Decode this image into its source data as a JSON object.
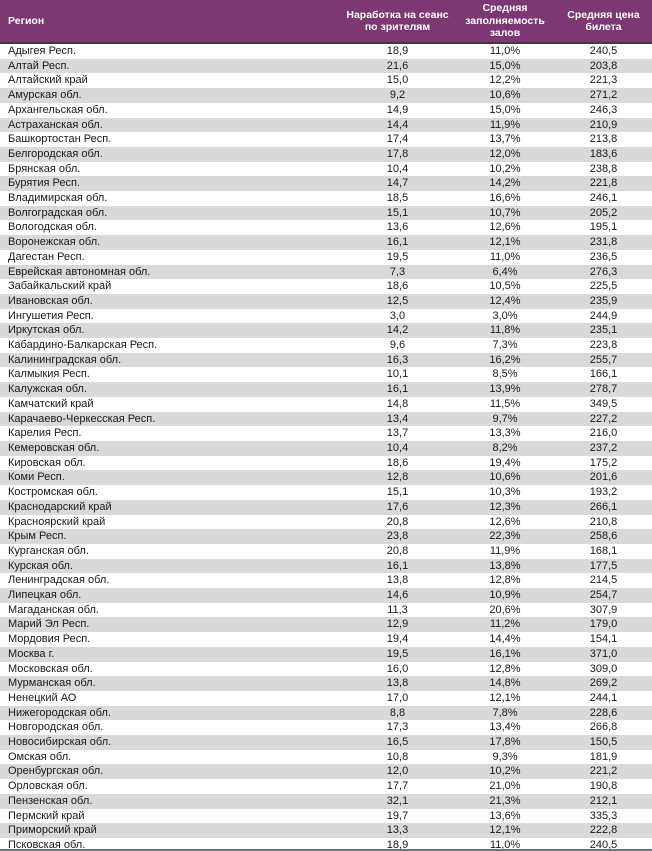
{
  "chart_data": {
    "type": "table",
    "columns": [
      "Регион",
      "Наработка на сеанс по зрителям",
      "Средняя заполняемость залов",
      "Средняя цена билета"
    ],
    "rows": [
      [
        "Адыгея Респ.",
        "18,9",
        "11,0%",
        "240,5"
      ],
      [
        "Алтай Респ.",
        "21,6",
        "15,0%",
        "203,8"
      ],
      [
        "Алтайский край",
        "15,0",
        "12,2%",
        "221,3"
      ],
      [
        "Амурская обл.",
        "9,2",
        "10,6%",
        "271,2"
      ],
      [
        "Архангельская обл.",
        "14,9",
        "15,0%",
        "246,3"
      ],
      [
        "Астраханская обл.",
        "14,4",
        "11,9%",
        "210,9"
      ],
      [
        "Башкортостан Респ.",
        "17,4",
        "13,7%",
        "213,8"
      ],
      [
        "Белгородская обл.",
        "17,8",
        "12,0%",
        "183,6"
      ],
      [
        "Брянская обл.",
        "10,4",
        "10,2%",
        "238,8"
      ],
      [
        "Бурятия Респ.",
        "14,7",
        "14,2%",
        "221,8"
      ],
      [
        "Владимирская обл.",
        "18,5",
        "16,6%",
        "246,1"
      ],
      [
        "Волгоградская обл.",
        "15,1",
        "10,7%",
        "205,2"
      ],
      [
        "Вологодская обл.",
        "13,6",
        "12,6%",
        "195,1"
      ],
      [
        "Воронежская обл.",
        "16,1",
        "12,1%",
        "231,8"
      ],
      [
        "Дагестан Респ.",
        "19,5",
        "11,0%",
        "236,5"
      ],
      [
        "Еврейская автономная обл.",
        "7,3",
        "6,4%",
        "276,3"
      ],
      [
        "Забайкальский край",
        "18,6",
        "10,5%",
        "225,5"
      ],
      [
        "Ивановская обл.",
        "12,5",
        "12,4%",
        "235,9"
      ],
      [
        "Ингушетия Респ.",
        "3,0",
        "3,0%",
        "244,9"
      ],
      [
        "Иркутская обл.",
        "14,2",
        "11,8%",
        "235,1"
      ],
      [
        "Кабардино-Балкарская Респ.",
        "9,6",
        "7,3%",
        "223,8"
      ],
      [
        "Калининградская обл.",
        "16,3",
        "16,2%",
        "255,7"
      ],
      [
        "Калмыкия Респ.",
        "10,1",
        "8,5%",
        "166,1"
      ],
      [
        "Калужская обл.",
        "16,1",
        "13,9%",
        "278,7"
      ],
      [
        "Камчатский край",
        "14,8",
        "11,5%",
        "349,5"
      ],
      [
        "Карачаево-Черкесская Респ.",
        "13,4",
        "9,7%",
        "227,2"
      ],
      [
        "Карелия Респ.",
        "13,7",
        "13,3%",
        "216,0"
      ],
      [
        "Кемеровская обл.",
        "10,4",
        "8,2%",
        "237,2"
      ],
      [
        "Кировская обл.",
        "18,6",
        "19,4%",
        "175,2"
      ],
      [
        "Коми Респ.",
        "12,8",
        "10,6%",
        "201,6"
      ],
      [
        "Костромская обл.",
        "15,1",
        "10,3%",
        "193,2"
      ],
      [
        "Краснодарский край",
        "17,6",
        "12,3%",
        "266,1"
      ],
      [
        "Красноярский край",
        "20,8",
        "12,6%",
        "210,8"
      ],
      [
        "Крым Респ.",
        "23,8",
        "22,3%",
        "258,6"
      ],
      [
        "Курганская обл.",
        "20,8",
        "11,9%",
        "168,1"
      ],
      [
        "Курская обл.",
        "16,1",
        "13,8%",
        "177,5"
      ],
      [
        "Ленинградская обл.",
        "13,8",
        "12,8%",
        "214,5"
      ],
      [
        "Липецкая обл.",
        "14,6",
        "10,9%",
        "254,7"
      ],
      [
        "Магаданская обл.",
        "11,3",
        "20,6%",
        "307,9"
      ],
      [
        "Марий Эл Респ.",
        "12,9",
        "11,2%",
        "179,0"
      ],
      [
        "Мордовия Респ.",
        "19,4",
        "14,4%",
        "154,1"
      ],
      [
        "Москва г.",
        "19,5",
        "16,1%",
        "371,0"
      ],
      [
        "Московская обл.",
        "16,0",
        "12,8%",
        "309,0"
      ],
      [
        "Мурманская обл.",
        "13,8",
        "14,8%",
        "269,2"
      ],
      [
        "Ненецкий АО",
        "17,0",
        "12,1%",
        "244,1"
      ],
      [
        "Нижегородская обл.",
        "8,8",
        "7,8%",
        "228,6"
      ],
      [
        "Новгородская обл.",
        "17,3",
        "13,4%",
        "266,8"
      ],
      [
        "Новосибирская обл.",
        "16,5",
        "17,8%",
        "150,5"
      ],
      [
        "Омская обл.",
        "10,8",
        "9,3%",
        "181,9"
      ],
      [
        "Оренбургская обл.",
        "12,0",
        "10,2%",
        "221,2"
      ],
      [
        "Орловская обл.",
        "17,7",
        "21,0%",
        "190,8"
      ],
      [
        "Пензенская обл.",
        "32,1",
        "21,3%",
        "212,1"
      ],
      [
        "Пермский край",
        "19,7",
        "13,6%",
        "335,3"
      ],
      [
        "Приморский край",
        "13,3",
        "12,1%",
        "222,8"
      ],
      [
        "Псковская обл.",
        "18,9",
        "11,0%",
        "240,5"
      ]
    ]
  },
  "colors": {
    "header_bg": "#7D3773",
    "header_text": "#FFFFFF",
    "stripe_row_bg": "#D9D9D9",
    "plain_row_bg": "#FFFFFF",
    "cell_text": "#1A1A1A",
    "header_divider": "#3B3B3B",
    "bottom_edge_line": "#63798A"
  }
}
